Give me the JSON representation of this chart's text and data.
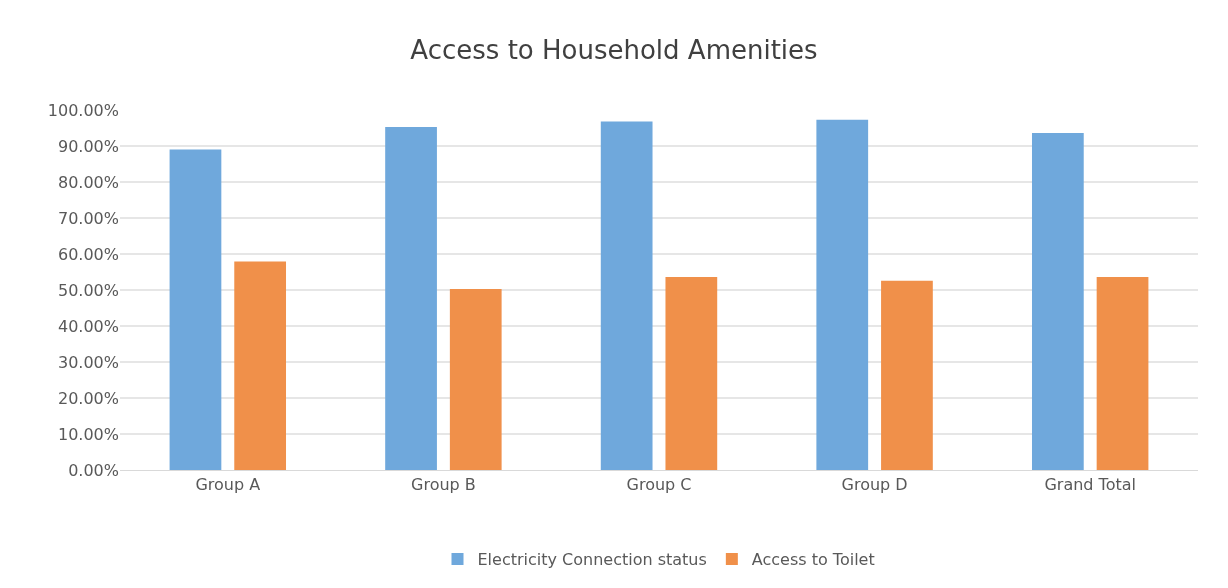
{
  "chart_data": {
    "type": "bar",
    "title": "Access to Household Amenities",
    "categories": [
      "Group A",
      "Group B",
      "Group C",
      "Group D",
      "Grand Total"
    ],
    "series": [
      {
        "name": "Electricity Connection status",
        "color": "#6fa8dc",
        "values": [
          89.0,
          95.3,
          96.8,
          97.3,
          93.6
        ]
      },
      {
        "name": "Access to Toilet",
        "color": "#f0904a",
        "values": [
          57.9,
          50.3,
          53.6,
          52.6,
          53.6
        ]
      }
    ],
    "ylim": [
      0,
      100
    ],
    "yticks": [
      {
        "value": 0,
        "label": "0.00%"
      },
      {
        "value": 10,
        "label": "10.00%"
      },
      {
        "value": 20,
        "label": "20.00%"
      },
      {
        "value": 30,
        "label": "30.00%"
      },
      {
        "value": 40,
        "label": "40.00%"
      },
      {
        "value": 50,
        "label": "50.00%"
      },
      {
        "value": 60,
        "label": "60.00%"
      },
      {
        "value": 70,
        "label": "70.00%"
      },
      {
        "value": 80,
        "label": "80.00%"
      },
      {
        "value": 90,
        "label": "90.00%"
      },
      {
        "value": 100,
        "label": "100.00%"
      }
    ],
    "grid": "y",
    "legend": "bottom"
  }
}
